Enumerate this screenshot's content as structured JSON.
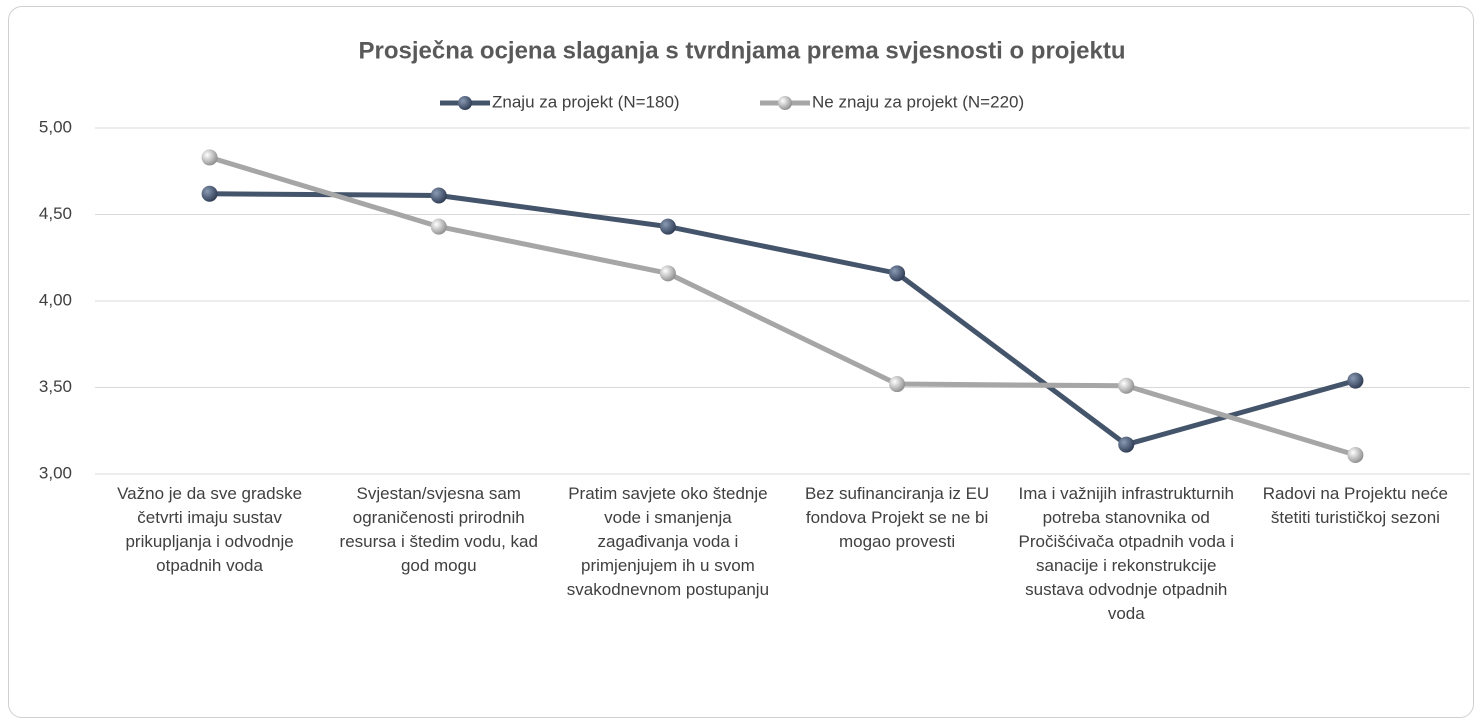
{
  "chart_data": {
    "type": "line",
    "title": "Prosječna ocjena slaganja s tvrdnjama prema svjesnosti o projektu",
    "categories": [
      "Važno je da sve gradske četvrti imaju sustav prikupljanja i odvodnje otpadnih voda",
      "Svjestan/svjesna sam ograničenosti prirodnih resursa i štedim vodu, kad god mogu",
      "Pratim savjete oko štednje vode i smanjenja zagađivanja voda i primjenjujem ih u svom svakodnevnom postupanju",
      "Bez sufinanciranja iz EU fondova Projekt se ne bi mogao provesti",
      "Ima i važnijih infrastrukturnih potreba stanovnika od Pročišćivača otpadnih voda i sanacije i rekonstrukcije sustava odvodnje otpadnih voda",
      "Radovi na Projektu neće štetiti turističkoj sezoni"
    ],
    "series": [
      {
        "name": "Znaju za projekt (N=180)",
        "color": "#44546a",
        "values": [
          4.62,
          4.61,
          4.43,
          4.16,
          3.17,
          3.54
        ]
      },
      {
        "name": "Ne znaju za projekt (N=220)",
        "color": "#a6a6a6",
        "values": [
          4.83,
          4.43,
          4.16,
          3.52,
          3.51,
          3.11
        ]
      }
    ],
    "ylim": [
      3,
      5
    ],
    "yticks": [
      {
        "value": 3,
        "label": "3,00"
      },
      {
        "value": 3.5,
        "label": "3,50"
      },
      {
        "value": 4,
        "label": "4,00"
      },
      {
        "value": 4.5,
        "label": "4,50"
      },
      {
        "value": 5,
        "label": "5,00"
      }
    ],
    "grid": true,
    "legend": "top"
  }
}
